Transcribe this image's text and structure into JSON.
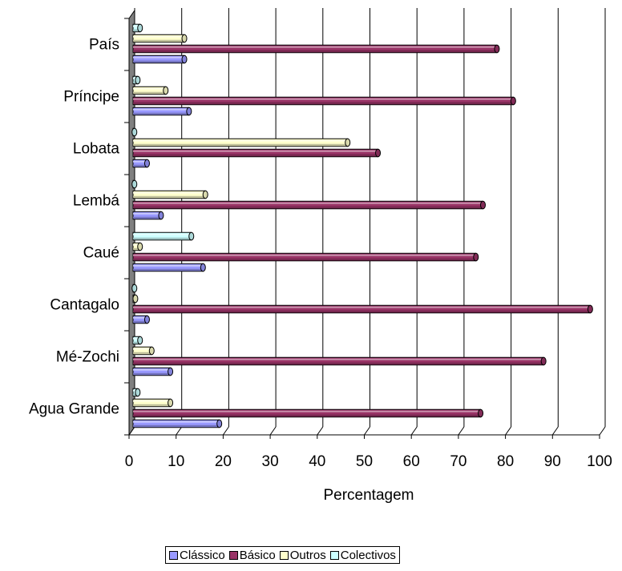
{
  "chart_data": {
    "type": "bar",
    "orientation": "horizontal",
    "style": "3d-cylinder",
    "categories": [
      "País",
      "Príncipe",
      "Lobata",
      "Lembá",
      "Caué",
      "Cantagalo",
      "Mé-Zochi",
      "Agua Grande"
    ],
    "series": [
      {
        "name": "Clássico",
        "color": "#9999ff",
        "values": [
          11,
          12,
          3,
          6,
          15,
          3,
          8,
          18.5
        ]
      },
      {
        "name": "Básico",
        "color": "#993366",
        "values": [
          78,
          81.5,
          52.5,
          75,
          73.5,
          98,
          88,
          74.5
        ]
      },
      {
        "name": "Outros",
        "color": "#ffffcc",
        "values": [
          11,
          7,
          46,
          15.5,
          1.5,
          0.5,
          4,
          8
        ]
      },
      {
        "name": "Colectivos",
        "color": "#ccffff",
        "values": [
          1.5,
          1,
          0.3,
          0.3,
          12.5,
          0.3,
          1.5,
          1
        ]
      }
    ],
    "xlabel": "Percentagem",
    "ylabel": "",
    "xlim": [
      0,
      100
    ],
    "xticks": [
      "0",
      "10",
      "20",
      "30",
      "40",
      "50",
      "60",
      "70",
      "80",
      "90",
      "100"
    ],
    "grid": "vertical",
    "legend_position": "bottom"
  }
}
